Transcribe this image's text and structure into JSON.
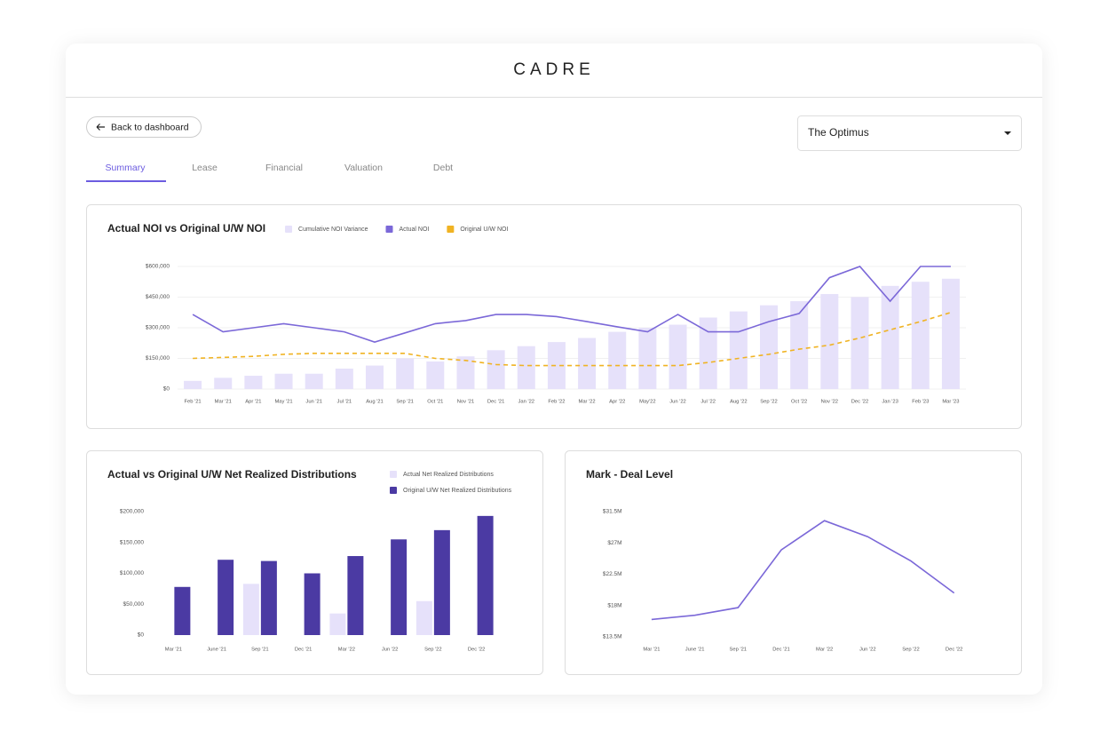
{
  "ui": {
    "logo": "CADRE",
    "back_button": "Back to dashboard",
    "tabs": [
      "Summary",
      "Lease",
      "Financial",
      "Valuation",
      "Debt"
    ],
    "active_tab": 0,
    "property_select": "The Optimus"
  },
  "chart_data": [
    {
      "type": "bar",
      "title": "Actual NOI vs Original U/W NOI",
      "legend": "top",
      "grid": true,
      "categories": [
        "Feb '21",
        "Mar '21",
        "Apr '21",
        "May '21",
        "Jun '21",
        "Jul '21",
        "Aug '21",
        "Sep '21",
        "Oct '21",
        "Nov '21",
        "Dec '21",
        "Jan '22",
        "Feb '22",
        "Mar '22",
        "Apr '22",
        "May'22",
        "Jun '22",
        "Jul '22",
        "Aug '22",
        "Sep '22",
        "Oct '22",
        "Nov '22",
        "Dec '22",
        "Jan '23",
        "Feb '23",
        "Mar '23"
      ],
      "ylim": [
        0,
        600000
      ],
      "yticks": [
        {
          "value": 0,
          "label": "$0"
        },
        {
          "value": 150000,
          "label": "$150,000"
        },
        {
          "value": 300000,
          "label": "$300,000"
        },
        {
          "value": 450000,
          "label": "$450,000"
        },
        {
          "value": 600000,
          "label": "$600,000"
        }
      ],
      "series": [
        {
          "name": "Cumulative NOI Variance",
          "type": "bar",
          "color": "#e6e1fa",
          "values": [
            40000,
            55000,
            65000,
            75000,
            75000,
            100000,
            115000,
            150000,
            135000,
            160000,
            190000,
            210000,
            230000,
            250000,
            280000,
            300000,
            315000,
            350000,
            380000,
            410000,
            430000,
            465000,
            450000,
            505000,
            525000,
            540000
          ]
        },
        {
          "name": "Actual NOI",
          "type": "line",
          "color": "#7b68d8",
          "values": [
            365000,
            280000,
            300000,
            320000,
            300000,
            280000,
            230000,
            275000,
            320000,
            335000,
            365000,
            365000,
            355000,
            330000,
            305000,
            280000,
            365000,
            280000,
            280000,
            330000,
            370000,
            545000,
            600000,
            430000,
            600000,
            600000
          ]
        },
        {
          "name": "Original U/W NOI",
          "type": "line",
          "line_style": "dashed",
          "color": "#f0b323",
          "values": [
            150000,
            155000,
            160000,
            170000,
            175000,
            175000,
            175000,
            175000,
            150000,
            140000,
            120000,
            115000,
            115000,
            115000,
            115000,
            115000,
            115000,
            130000,
            150000,
            170000,
            195000,
            215000,
            250000,
            290000,
            330000,
            375000
          ]
        }
      ]
    },
    {
      "type": "bar",
      "title": "Actual vs Original U/W Net Realized Distributions",
      "legend": "top-right",
      "grid": false,
      "categories": [
        "Mar '21",
        "June '21",
        "Sep '21",
        "Dec '21",
        "Mar '22",
        "Jun '22",
        "Sep '22",
        "Dec '22"
      ],
      "ylim": [
        0,
        200000
      ],
      "yticks": [
        {
          "value": 0,
          "label": "$0"
        },
        {
          "value": 50000,
          "label": "$50,000"
        },
        {
          "value": 100000,
          "label": "$100,000"
        },
        {
          "value": 150000,
          "label": "$150,000"
        },
        {
          "value": 200000,
          "label": "$200,000"
        }
      ],
      "series": [
        {
          "name": "Actual Net Realized Distributions",
          "type": "bar",
          "color": "#e6e1fa",
          "values": [
            0,
            0,
            83000,
            0,
            35000,
            0,
            55000,
            0
          ]
        },
        {
          "name": "Original U/W Net Realized Distributions",
          "type": "bar",
          "color": "#4b3aa3",
          "values": [
            78000,
            122000,
            120000,
            100000,
            128000,
            155000,
            170000,
            193000
          ]
        }
      ]
    },
    {
      "type": "line",
      "title": "Mark - Deal Level",
      "grid": false,
      "categories": [
        "Mar '21",
        "June '21",
        "Sep '21",
        "Dec '21",
        "Mar '22",
        "Jun '22",
        "Sep '22",
        "Dec '22"
      ],
      "ylim": [
        13.5,
        31.5
      ],
      "yticks": [
        {
          "value": 13.5,
          "label": "$13.5M"
        },
        {
          "value": 18,
          "label": "$18M"
        },
        {
          "value": 22.5,
          "label": "$22.5M"
        },
        {
          "value": 27,
          "label": "$27M"
        },
        {
          "value": 31.5,
          "label": "$31.5M"
        }
      ],
      "series": [
        {
          "type": "line",
          "color": "#7b68d8",
          "values": [
            16,
            16.6,
            17.7,
            26,
            30.2,
            27.9,
            24.4,
            19.8
          ]
        }
      ]
    }
  ]
}
